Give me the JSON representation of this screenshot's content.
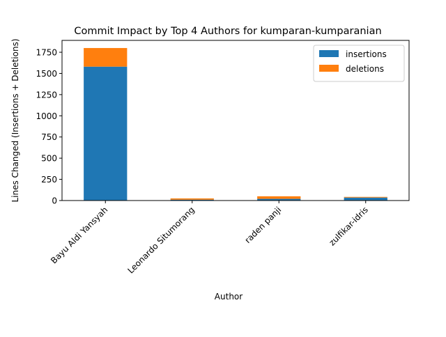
{
  "chart_data": {
    "type": "bar",
    "stacked": true,
    "title": "Commit Impact by Top 4 Authors for kumparan-kumparanian",
    "xlabel": "Author",
    "ylabel": "Lines Changed (Insertions + Deletions)",
    "categories": [
      "Bayu Aldi Yansyah",
      "Leonardo Situmorang",
      "raden panji",
      "zulfikar-idris"
    ],
    "series": [
      {
        "name": "insertions",
        "values": [
          1580,
          10,
          20,
          35
        ],
        "color": "#1f77b4"
      },
      {
        "name": "deletions",
        "values": [
          220,
          15,
          30,
          8
        ],
        "color": "#ff7f0e"
      }
    ],
    "ylim": [
      0,
      1890
    ],
    "yticks": [
      0,
      250,
      500,
      750,
      1000,
      1250,
      1500,
      1750
    ],
    "grid": false,
    "legend_position": "top-right"
  }
}
